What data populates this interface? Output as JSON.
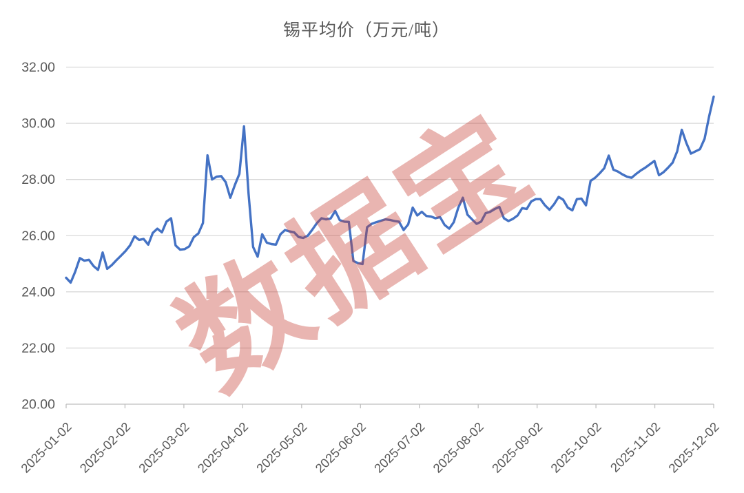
{
  "title": "锡平均价（万元/吨）",
  "watermark": {
    "text": "数据宝",
    "color": "rgba(198,60,50,0.38)",
    "rotation_deg": -33
  },
  "colors": {
    "line": "#4472C4",
    "grid": "#D9D9D9",
    "axis": "#BFBFBF",
    "text": "#595959",
    "background": "#FFFFFF"
  },
  "chart_data": {
    "type": "line",
    "title": "锡平均价（万元/吨）",
    "ylabel": "",
    "xlabel": "",
    "unit": "万元/吨",
    "grid": "horizontal",
    "legend": "none",
    "ylim": [
      20,
      32
    ],
    "y_ticks": [
      20,
      22,
      24,
      26,
      28,
      30,
      32
    ],
    "y_tick_labels": [
      "20.00",
      "22.00",
      "24.00",
      "26.00",
      "28.00",
      "30.00",
      "32.00"
    ],
    "x_tick_labels": [
      "2025-01-02",
      "2025-02-02",
      "2025-03-02",
      "2025-04-02",
      "2025-05-02",
      "2025-06-02",
      "2025-07-02",
      "2025-08-02",
      "2025-09-02",
      "2025-10-02",
      "2025-11-02",
      "2025-12-02"
    ],
    "x_range": [
      "2025-01-02",
      "2025-12-05"
    ],
    "series": [
      {
        "name": "锡平均价",
        "values": [
          24.5,
          24.33,
          24.72,
          25.2,
          25.11,
          25.14,
          24.92,
          24.78,
          25.4,
          24.82,
          24.95,
          25.12,
          25.28,
          25.45,
          25.65,
          25.98,
          25.85,
          25.88,
          25.68,
          26.1,
          26.25,
          26.12,
          26.5,
          26.62,
          25.65,
          25.5,
          25.52,
          25.62,
          25.95,
          26.08,
          26.45,
          28.86,
          28.0,
          28.1,
          28.12,
          27.9,
          27.35,
          27.8,
          28.2,
          29.89,
          27.5,
          25.6,
          25.25,
          26.05,
          25.75,
          25.7,
          25.68,
          26.05,
          26.2,
          26.15,
          26.12,
          25.95,
          25.92,
          26.0,
          26.22,
          26.45,
          26.62,
          26.58,
          26.61,
          26.88,
          26.55,
          26.5,
          26.49,
          25.1,
          25.02,
          24.99,
          26.3,
          26.42,
          26.48,
          26.53,
          26.58,
          26.56,
          26.52,
          26.5,
          26.2,
          26.4,
          27.0,
          26.72,
          26.85,
          26.7,
          26.68,
          26.62,
          26.66,
          26.38,
          26.25,
          26.48,
          27.0,
          27.35,
          26.75,
          26.58,
          26.42,
          26.5,
          26.8,
          26.85,
          26.95,
          27.02,
          26.62,
          26.52,
          26.6,
          26.72,
          26.98,
          26.95,
          27.22,
          27.3,
          27.3,
          27.08,
          26.92,
          27.12,
          27.38,
          27.28,
          27.0,
          26.9,
          27.3,
          27.32,
          27.08,
          27.95,
          28.06,
          28.22,
          28.4,
          28.85,
          28.35,
          28.28,
          28.18,
          28.1,
          28.06,
          28.2,
          28.32,
          28.42,
          28.54,
          28.66,
          28.15,
          28.26,
          28.42,
          28.6,
          29.0,
          29.77,
          29.3,
          28.92,
          29.0,
          29.08,
          29.45,
          30.25,
          30.95
        ]
      }
    ]
  }
}
